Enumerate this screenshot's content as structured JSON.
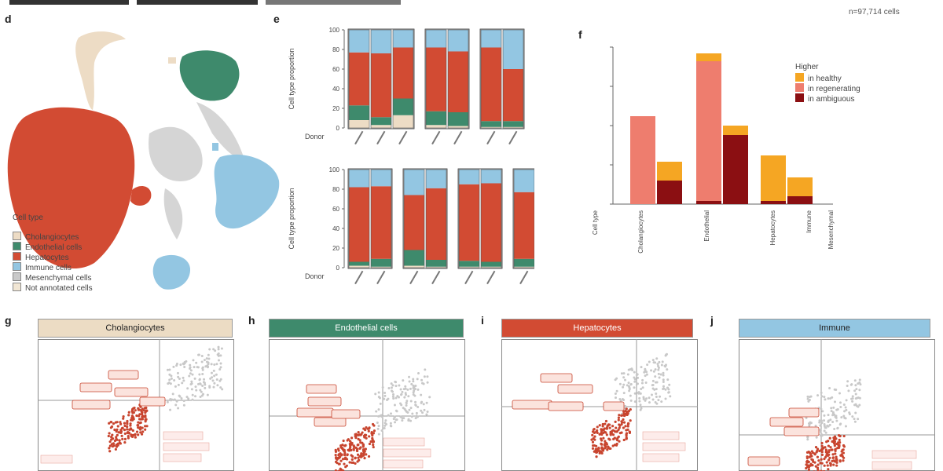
{
  "panels": {
    "d": "d",
    "e": "e",
    "f": "f",
    "g": "g",
    "h": "h",
    "i": "i",
    "j": "j"
  },
  "umap": {
    "cell_count": "n=97,714 cells",
    "legend_title": "Cell type",
    "legend": [
      {
        "label": "Cholangiocytes",
        "color": "#eddcc5"
      },
      {
        "label": "Endothelial cells",
        "color": "#3e8a6c"
      },
      {
        "label": "Hepatocytes",
        "color": "#d24b33"
      },
      {
        "label": "Immune cells",
        "color": "#93c6e2"
      },
      {
        "label": "Mesenchymal cells",
        "color": "#c9c9c9"
      },
      {
        "label": "Not annotated cells",
        "color": "#f1e6d4"
      }
    ]
  },
  "stacked_bars": {
    "y_axis_label": "Cell type proportion",
    "donor_label": "Donor",
    "y_ticks": [
      "0",
      "20",
      "40",
      "60",
      "80",
      "100"
    ]
  },
  "deg_chart": {
    "legend_title": "Higher",
    "legend": [
      {
        "label": "in healthy",
        "color": "#f5a623"
      },
      {
        "label": "in regenerating",
        "color": "#ee7d6e"
      },
      {
        "label": "in ambiguous",
        "color": "#8b0f12"
      }
    ],
    "x_categories": [
      "Cell type",
      "Cholangiocytes",
      "Endothelial",
      "Hepatocytes",
      "Immune",
      "Mesenchymal"
    ]
  },
  "banners": [
    {
      "title": "Cholangiocytes",
      "color": "#ecdcc4"
    },
    {
      "title": "Endothelial cells",
      "color": "#3e8a6c"
    },
    {
      "title": "Hepatocytes",
      "color": "#d24b33"
    },
    {
      "title": "Immune",
      "color": "#93c6e2"
    }
  ]
}
